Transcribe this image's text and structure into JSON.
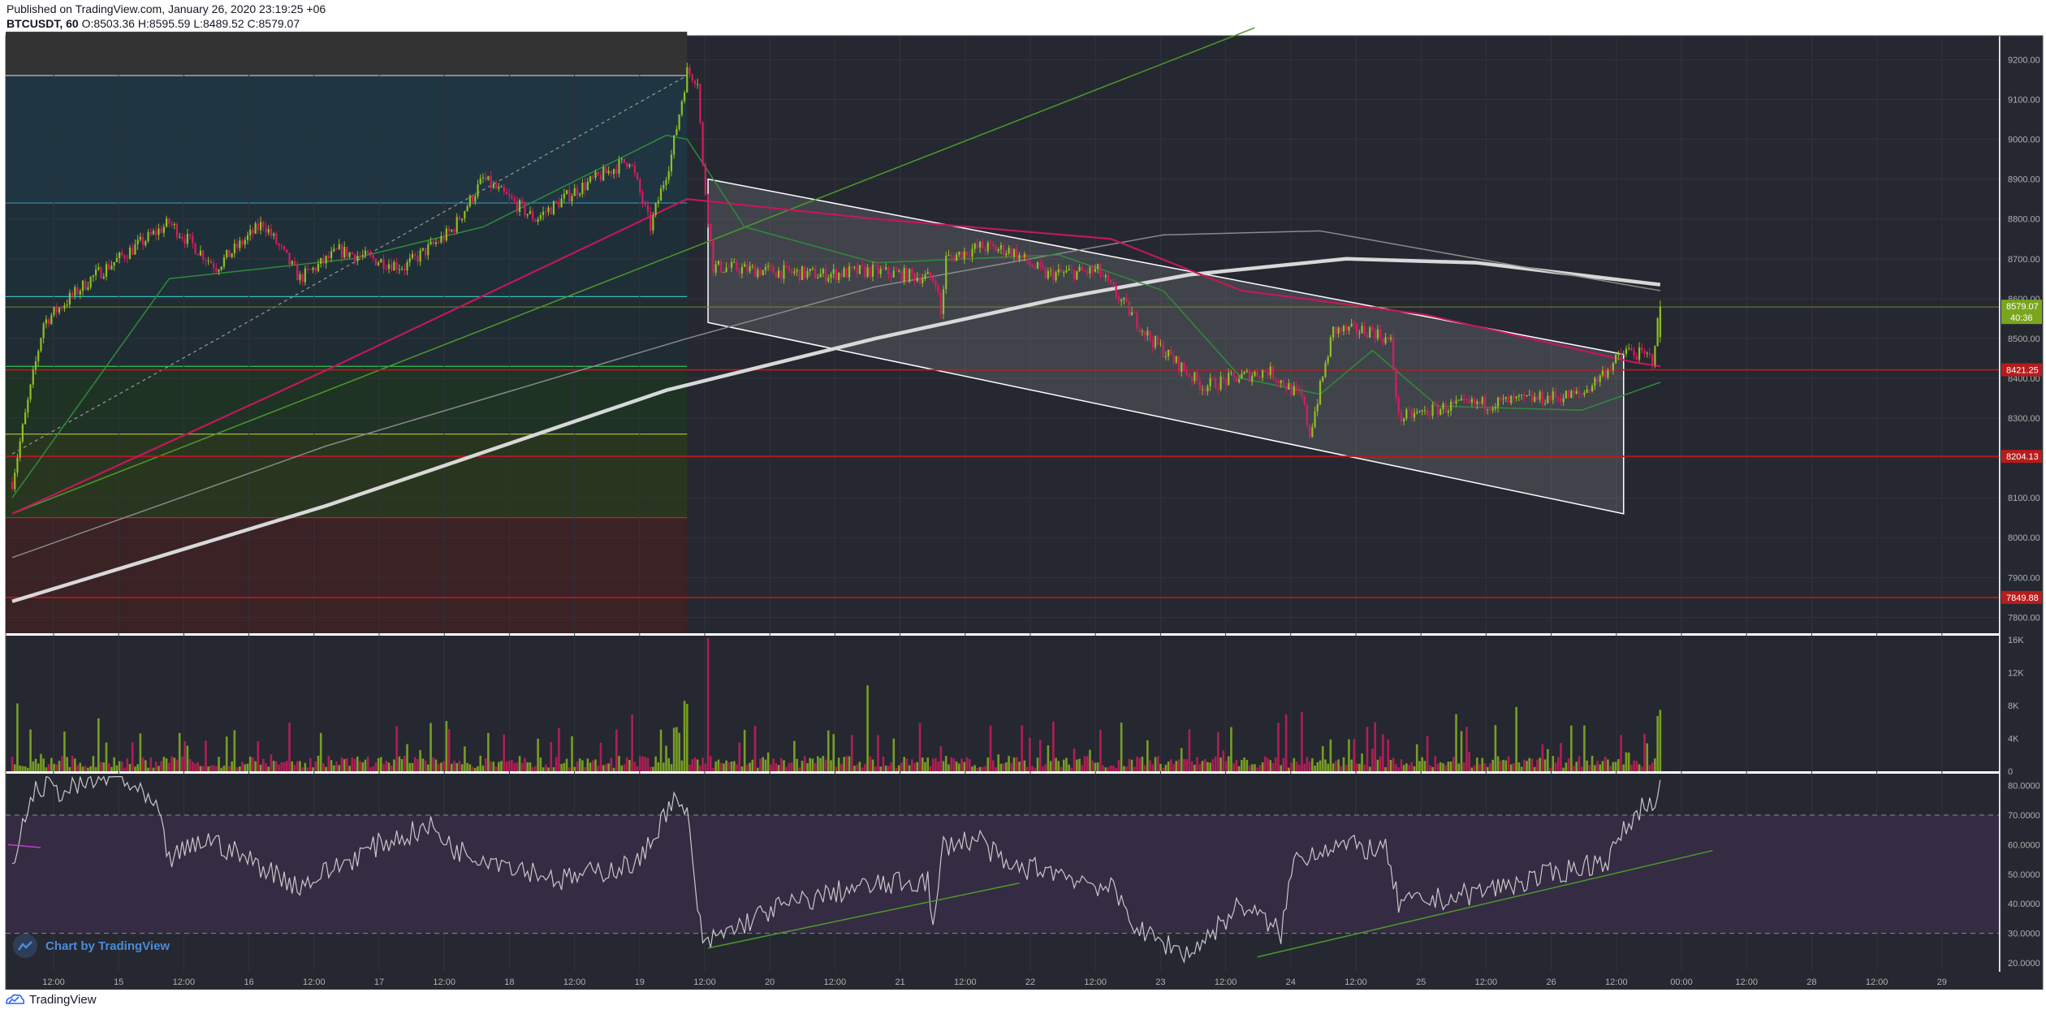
{
  "header": {
    "published": "Published on TradingView.com, January 26, 2020 23:19:25 +06",
    "symbol": "BTCUSDT, 60",
    "ohlc": "O:8503.36 H:8595.59 L:8489.52 C:8579.07"
  },
  "footer": {
    "brand": "TradingView"
  },
  "badge": {
    "label": "Chart by TradingView"
  },
  "colors": {
    "background": "#252830",
    "up": "#8fbf24",
    "down": "#d81b60",
    "channel": "#ffffff",
    "support_line": "#c2171b",
    "trend_line": "#4d9a2c",
    "ma_thick": "#d8d8d8",
    "ma_magenta": "#c2185b",
    "ma_green": "#2e8b3c",
    "rsi_line": "#c8c8c8",
    "rsi_band": "#3b2c4a"
  },
  "chart_data": [
    {
      "type": "candlestick",
      "panel": "price",
      "symbol": "BTCUSDT",
      "interval": "60",
      "x_tick_labels": [
        "12:00",
        "15",
        "12:00",
        "16",
        "12:00",
        "17",
        "12:00",
        "18",
        "12:00",
        "19",
        "12:00",
        "20",
        "12:00",
        "21",
        "12:00",
        "22",
        "12:00",
        "23",
        "12:00",
        "24",
        "12:00",
        "25",
        "12:00",
        "26",
        "12:00",
        "00:00",
        "12:00",
        "28",
        "12:00",
        "29"
      ],
      "y_ticks": [
        9200,
        9100,
        9000,
        8900,
        8800,
        8700,
        8600,
        8500,
        8400,
        8300,
        8200,
        8100,
        8000,
        7900,
        7800
      ],
      "ylim": [
        7760,
        9260
      ],
      "current_price": {
        "label": "8579.07",
        "countdown": "40:36"
      },
      "levels": [
        {
          "label": "8421.25",
          "value": 8421.25
        },
        {
          "label": "8204.13",
          "value": 8204.13
        },
        {
          "label": "7849.88",
          "value": 7849.88
        }
      ],
      "candle_keypoints": [
        [
          0,
          8140
        ],
        [
          12,
          8540
        ],
        [
          30,
          8650
        ],
        [
          60,
          8790
        ],
        [
          78,
          8680
        ],
        [
          96,
          8790
        ],
        [
          110,
          8650
        ],
        [
          125,
          8720
        ],
        [
          150,
          8680
        ],
        [
          168,
          8770
        ],
        [
          180,
          8900
        ],
        [
          200,
          8800
        ],
        [
          215,
          8870
        ],
        [
          236,
          8950
        ],
        [
          244,
          8780
        ],
        [
          252,
          8960
        ],
        [
          258,
          9170
        ],
        [
          262,
          9150
        ],
        [
          264,
          8930
        ],
        [
          268,
          8680
        ],
        [
          288,
          8670
        ],
        [
          310,
          8660
        ],
        [
          328,
          8670
        ],
        [
          353,
          8650
        ],
        [
          355,
          8560
        ],
        [
          357,
          8700
        ],
        [
          370,
          8730
        ],
        [
          382,
          8720
        ],
        [
          395,
          8660
        ],
        [
          415,
          8670
        ],
        [
          435,
          8500
        ],
        [
          455,
          8380
        ],
        [
          480,
          8420
        ],
        [
          493,
          8350
        ],
        [
          496,
          8260
        ],
        [
          505,
          8520
        ],
        [
          520,
          8520
        ],
        [
          527,
          8490
        ],
        [
          530,
          8300
        ],
        [
          550,
          8330
        ],
        [
          570,
          8340
        ],
        [
          600,
          8360
        ],
        [
          617,
          8470
        ],
        [
          627,
          8450
        ],
        [
          630,
          8579
        ]
      ],
      "moving_averages": [
        {
          "name": "ma-thick",
          "points": [
            [
              0,
              7840
            ],
            [
              120,
              8080
            ],
            [
              250,
              8370
            ],
            [
              330,
              8500
            ],
            [
              400,
              8600
            ],
            [
              450,
              8660
            ],
            [
              510,
              8700
            ],
            [
              560,
              8690
            ],
            [
              630,
              8635
            ]
          ]
        },
        {
          "name": "ma-thin-grey",
          "points": [
            [
              0,
              7950
            ],
            [
              120,
              8230
            ],
            [
              258,
              8500
            ],
            [
              330,
              8630
            ],
            [
              440,
              8760
            ],
            [
              500,
              8770
            ],
            [
              560,
              8700
            ],
            [
              630,
              8620
            ]
          ]
        },
        {
          "name": "ma-magenta",
          "points": [
            [
              0,
              8060
            ],
            [
              120,
              8420
            ],
            [
              258,
              8850
            ],
            [
              330,
              8800
            ],
            [
              420,
              8750
            ],
            [
              470,
              8620
            ],
            [
              540,
              8560
            ],
            [
              620,
              8440
            ],
            [
              630,
              8430
            ]
          ]
        },
        {
          "name": "ma-green",
          "points": [
            [
              0,
              8100
            ],
            [
              60,
              8650
            ],
            [
              130,
              8700
            ],
            [
              180,
              8780
            ],
            [
              250,
              9010
            ],
            [
              258,
              9000
            ],
            [
              280,
              8780
            ],
            [
              330,
              8690
            ],
            [
              400,
              8710
            ],
            [
              440,
              8620
            ],
            [
              470,
              8400
            ],
            [
              500,
              8360
            ],
            [
              520,
              8470
            ],
            [
              545,
              8330
            ],
            [
              600,
              8320
            ],
            [
              630,
              8390
            ]
          ]
        }
      ],
      "channel": {
        "upper": [
          [
            266,
            8900
          ],
          [
            616,
            8460
          ]
        ],
        "lower": [
          [
            266,
            8540
          ],
          [
            616,
            8060
          ]
        ]
      },
      "trend_line": [
        [
          0,
          8060
        ],
        [
          475,
          9280
        ]
      ],
      "history_zones": [
        {
          "to_bar": 258,
          "top": 9270,
          "bottom": 9160,
          "color": "#333333"
        },
        {
          "to_bar": 258,
          "top": 9160,
          "bottom": 8840,
          "color": "#1f3542"
        },
        {
          "to_bar": 258,
          "top": 8840,
          "bottom": 8605,
          "color": "#1f2f38"
        },
        {
          "to_bar": 258,
          "top": 8605,
          "bottom": 8430,
          "color": "#1f2c33"
        },
        {
          "to_bar": 258,
          "top": 8430,
          "bottom": 8260,
          "color": "#1e3324"
        },
        {
          "to_bar": 258,
          "top": 8260,
          "bottom": 8050,
          "color": "#29361f"
        },
        {
          "to_bar": 258,
          "top": 8050,
          "bottom": 7760,
          "color": "#3a2225"
        }
      ]
    },
    {
      "type": "bar",
      "panel": "volume",
      "y_ticks": [
        "16K",
        "12K",
        "8K",
        "4K",
        "0"
      ],
      "ylim": [
        0,
        16500
      ]
    },
    {
      "type": "line",
      "panel": "rsi",
      "y_ticks": [
        80,
        70,
        60,
        50,
        40,
        30,
        20
      ],
      "tick_labels": [
        "80.0000",
        "70.0000",
        "60.0000",
        "50.0000",
        "40.0000",
        "30.0000",
        "20.0000"
      ],
      "ylim": [
        17,
        84
      ],
      "bands": [
        30,
        70
      ],
      "rsi_keypoints": [
        [
          0,
          50
        ],
        [
          4,
          68
        ],
        [
          10,
          80
        ],
        [
          20,
          78
        ],
        [
          40,
          84
        ],
        [
          55,
          72
        ],
        [
          60,
          55
        ],
        [
          75,
          62
        ],
        [
          90,
          55
        ],
        [
          110,
          46
        ],
        [
          140,
          60
        ],
        [
          160,
          66
        ],
        [
          170,
          58
        ],
        [
          185,
          55
        ],
        [
          210,
          48
        ],
        [
          240,
          54
        ],
        [
          252,
          75
        ],
        [
          258,
          70
        ],
        [
          264,
          25
        ],
        [
          268,
          28
        ],
        [
          290,
          38
        ],
        [
          320,
          45
        ],
        [
          350,
          48
        ],
        [
          352,
          30
        ],
        [
          356,
          60
        ],
        [
          370,
          62
        ],
        [
          380,
          52
        ],
        [
          395,
          52
        ],
        [
          420,
          45
        ],
        [
          432,
          30
        ],
        [
          450,
          23
        ],
        [
          470,
          40
        ],
        [
          485,
          30
        ],
        [
          490,
          55
        ],
        [
          505,
          60
        ],
        [
          525,
          58
        ],
        [
          530,
          40
        ],
        [
          550,
          42
        ],
        [
          580,
          48
        ],
        [
          610,
          55
        ],
        [
          620,
          70
        ],
        [
          630,
          78
        ]
      ],
      "trend_lines": [
        [
          [
            266,
            25
          ],
          [
            385,
            47
          ]
        ],
        [
          [
            476,
            22
          ],
          [
            650,
            58
          ]
        ]
      ]
    }
  ]
}
